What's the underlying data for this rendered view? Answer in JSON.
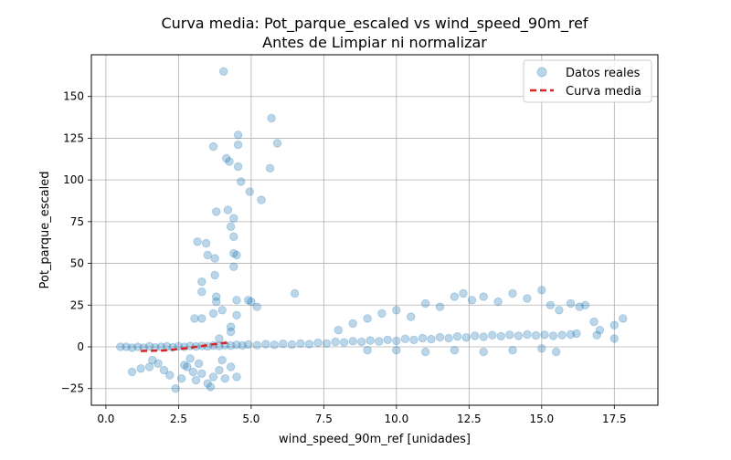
{
  "chart_data": {
    "type": "scatter",
    "title": "Curva media: Pot_parque_escaled vs wind_speed_90m_ref",
    "subtitle": "Antes de Limpiar ni normalizar",
    "xlabel": "wind_speed_90m_ref [unidades]",
    "ylabel": "Pot_parque_escaled",
    "xlim": [
      -0.5,
      19.0
    ],
    "ylim": [
      -35,
      175
    ],
    "x_ticks": [
      0.0,
      2.5,
      5.0,
      7.5,
      10.0,
      12.5,
      15.0,
      17.5
    ],
    "x_tick_labels": [
      "0.0",
      "2.5",
      "5.0",
      "7.5",
      "10.0",
      "12.5",
      "15.0",
      "17.5"
    ],
    "y_ticks": [
      -25,
      0,
      25,
      50,
      75,
      100,
      125,
      150
    ],
    "y_tick_labels": [
      "−25",
      "0",
      "25",
      "50",
      "75",
      "100",
      "125",
      "150"
    ],
    "grid": true,
    "legend_position": "top-right",
    "series": [
      {
        "name": "Datos reales",
        "kind": "scatter",
        "color": "#1f77b4",
        "alpha": 0.3,
        "points": [
          [
            0.5,
            0
          ],
          [
            0.7,
            0
          ],
          [
            0.9,
            -0.5
          ],
          [
            1.1,
            0
          ],
          [
            1.3,
            -0.5
          ],
          [
            1.5,
            0.3
          ],
          [
            1.7,
            -0.4
          ],
          [
            1.9,
            0
          ],
          [
            2.1,
            0.2
          ],
          [
            2.3,
            -0.3
          ],
          [
            2.5,
            0.4
          ],
          [
            2.7,
            0
          ],
          [
            2.9,
            0.5
          ],
          [
            3.1,
            0.2
          ],
          [
            3.3,
            0.6
          ],
          [
            3.5,
            0.3
          ],
          [
            3.7,
            0.8
          ],
          [
            3.9,
            0.5
          ],
          [
            4.1,
            1
          ],
          [
            4.3,
            0.7
          ],
          [
            4.5,
            1.2
          ],
          [
            4.7,
            0.8
          ],
          [
            4.9,
            1.4
          ],
          [
            5.2,
            1
          ],
          [
            5.5,
            1.6
          ],
          [
            5.8,
            1.2
          ],
          [
            6.1,
            1.8
          ],
          [
            6.4,
            1.4
          ],
          [
            6.7,
            2
          ],
          [
            7.0,
            1.6
          ],
          [
            7.3,
            2.4
          ],
          [
            7.6,
            2
          ],
          [
            7.9,
            3
          ],
          [
            8.2,
            2.6
          ],
          [
            8.5,
            3.4
          ],
          [
            8.8,
            3
          ],
          [
            9.1,
            3.8
          ],
          [
            9.4,
            3.2
          ],
          [
            9.7,
            4.2
          ],
          [
            10.0,
            3.6
          ],
          [
            10.3,
            4.8
          ],
          [
            10.6,
            4.2
          ],
          [
            10.9,
            5.2
          ],
          [
            11.2,
            4.6
          ],
          [
            11.5,
            5.8
          ],
          [
            11.8,
            5.2
          ],
          [
            12.1,
            6.2
          ],
          [
            12.4,
            5.6
          ],
          [
            12.7,
            6.6
          ],
          [
            13.0,
            6
          ],
          [
            13.3,
            7
          ],
          [
            13.6,
            6.4
          ],
          [
            13.9,
            7.2
          ],
          [
            14.2,
            6.6
          ],
          [
            14.5,
            7.4
          ],
          [
            14.8,
            6.8
          ],
          [
            15.1,
            7.2
          ],
          [
            15.4,
            6.6
          ],
          [
            15.7,
            7
          ],
          [
            16.0,
            7.4
          ],
          [
            8.0,
            10
          ],
          [
            8.5,
            14
          ],
          [
            9.0,
            17
          ],
          [
            9.5,
            20
          ],
          [
            10.0,
            22
          ],
          [
            10.5,
            18
          ],
          [
            11.0,
            26
          ],
          [
            11.5,
            24
          ],
          [
            12.0,
            30
          ],
          [
            12.3,
            32
          ],
          [
            12.6,
            28
          ],
          [
            13.0,
            30
          ],
          [
            13.5,
            27
          ],
          [
            14.0,
            32
          ],
          [
            14.5,
            29
          ],
          [
            15.0,
            34
          ],
          [
            15.3,
            25
          ],
          [
            15.6,
            22
          ],
          [
            16.0,
            26
          ],
          [
            16.3,
            24
          ],
          [
            16.5,
            25
          ],
          [
            16.8,
            15
          ],
          [
            17.0,
            10
          ],
          [
            17.5,
            13
          ],
          [
            17.8,
            17
          ],
          [
            17.5,
            5
          ],
          [
            16.9,
            7
          ],
          [
            16.2,
            8
          ],
          [
            9.0,
            -2
          ],
          [
            10.0,
            -2
          ],
          [
            11.0,
            -3
          ],
          [
            12.0,
            -2
          ],
          [
            13.0,
            -3
          ],
          [
            14.0,
            -2
          ],
          [
            15.0,
            -1
          ],
          [
            15.5,
            -3
          ],
          [
            0.9,
            -15
          ],
          [
            1.2,
            -13
          ],
          [
            1.5,
            -12
          ],
          [
            1.8,
            -10
          ],
          [
            2.0,
            -14
          ],
          [
            2.2,
            -17
          ],
          [
            2.4,
            -25
          ],
          [
            2.6,
            -19
          ],
          [
            2.8,
            -12
          ],
          [
            3.0,
            -15
          ],
          [
            3.1,
            -20
          ],
          [
            3.3,
            -16
          ],
          [
            3.5,
            -22
          ],
          [
            3.7,
            -18
          ],
          [
            3.9,
            -14
          ],
          [
            4.1,
            -19
          ],
          [
            4.3,
            -12
          ],
          [
            4.5,
            -18
          ],
          [
            3.2,
            -10
          ],
          [
            2.9,
            -7
          ],
          [
            3.6,
            -24
          ],
          [
            4.0,
            -8
          ],
          [
            1.6,
            -8
          ],
          [
            2.7,
            -11
          ],
          [
            4.05,
            165
          ],
          [
            5.7,
            137
          ],
          [
            5.9,
            122
          ],
          [
            4.55,
            127
          ],
          [
            4.55,
            121
          ],
          [
            3.7,
            120
          ],
          [
            4.15,
            113
          ],
          [
            4.25,
            111
          ],
          [
            4.55,
            108
          ],
          [
            5.65,
            107
          ],
          [
            4.65,
            99
          ],
          [
            4.95,
            93
          ],
          [
            5.35,
            88
          ],
          [
            3.8,
            81
          ],
          [
            4.2,
            82
          ],
          [
            4.4,
            77
          ],
          [
            4.3,
            72
          ],
          [
            4.4,
            66
          ],
          [
            3.15,
            63
          ],
          [
            3.45,
            62
          ],
          [
            4.4,
            56
          ],
          [
            3.5,
            55
          ],
          [
            3.75,
            53
          ],
          [
            4.5,
            55
          ],
          [
            4.4,
            48
          ],
          [
            3.75,
            43
          ],
          [
            3.3,
            39
          ],
          [
            3.3,
            33
          ],
          [
            3.8,
            30
          ],
          [
            3.8,
            27
          ],
          [
            4.9,
            28
          ],
          [
            5.0,
            27
          ],
          [
            4.5,
            28
          ],
          [
            6.5,
            32
          ],
          [
            3.05,
            17
          ],
          [
            3.3,
            17
          ],
          [
            3.7,
            20
          ],
          [
            4.0,
            22
          ],
          [
            4.5,
            19
          ],
          [
            4.3,
            12
          ],
          [
            4.3,
            9
          ],
          [
            3.9,
            5
          ],
          [
            5.2,
            24
          ]
        ]
      },
      {
        "name": "Curva media",
        "kind": "line",
        "style": "dashed",
        "color": "#d62728",
        "points": [
          [
            1.2,
            -2.5
          ],
          [
            2.0,
            -2.2
          ],
          [
            2.7,
            -1.0
          ],
          [
            3.3,
            0.5
          ],
          [
            3.9,
            2.0
          ],
          [
            4.25,
            2.5
          ]
        ]
      }
    ]
  }
}
